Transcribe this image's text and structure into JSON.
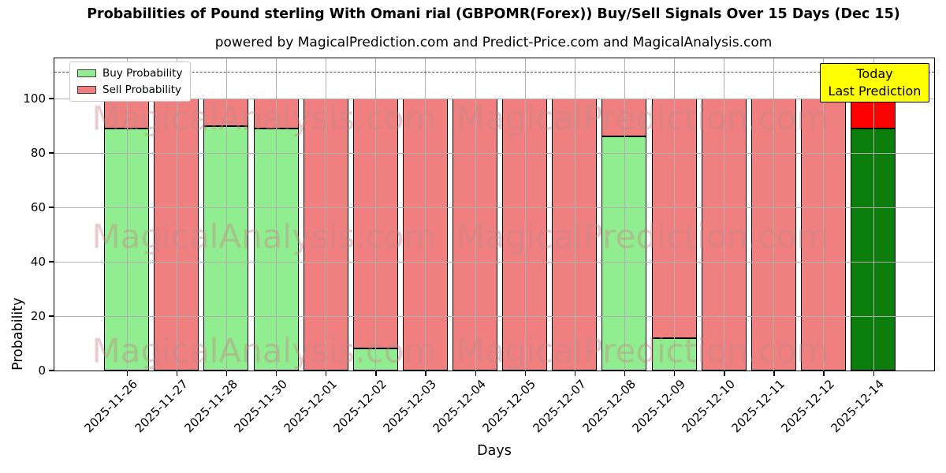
{
  "header": {
    "title": "Probabilities of Pound sterling With Omani rial (GBPOMR(Forex)) Buy/Sell Signals Over 15 Days (Dec 15)",
    "subtitle": "powered by MagicalPrediction.com and Predict-Price.com and MagicalAnalysis.com"
  },
  "legend": {
    "items": [
      {
        "label": "Buy Probability",
        "color": "#90ee90"
      },
      {
        "label": "Sell Probability",
        "color": "#f08080"
      }
    ]
  },
  "axes": {
    "xlabel": "Days",
    "ylabel": "Probability",
    "yticks": [
      0,
      20,
      40,
      60,
      80,
      100
    ]
  },
  "annotation": {
    "lines": [
      "Today",
      "Last Prediction"
    ],
    "bg_color": "#ffff00"
  },
  "watermarks": {
    "left": "MagicalAnalysis.com",
    "right": "MagicalPrediction.com"
  },
  "chart_data": {
    "type": "bar",
    "stacked": true,
    "title": "Probabilities of Pound sterling With Omani rial (GBPOMR(Forex)) Buy/Sell Signals Over 15 Days (Dec 15)",
    "xlabel": "Days",
    "ylabel": "Probability",
    "ylim": [
      0,
      115
    ],
    "grid": true,
    "legend_position": "upper left",
    "dashed_guide_line_y": 110,
    "categories": [
      "2025-11-26",
      "2025-11-27",
      "2025-11-28",
      "2025-11-30",
      "2025-12-01",
      "2025-12-02",
      "2025-12-03",
      "2025-12-04",
      "2025-12-05",
      "2025-12-07",
      "2025-12-08",
      "2025-12-09",
      "2025-12-10",
      "2025-12-11",
      "2025-12-12",
      "2025-12-14"
    ],
    "series": [
      {
        "name": "Buy Probability",
        "color": "#90ee90",
        "values": [
          89,
          0,
          90,
          89,
          0,
          8,
          0,
          0,
          0,
          0,
          86,
          12,
          0,
          0,
          0,
          89
        ]
      },
      {
        "name": "Sell Probability",
        "color": "#f08080",
        "values": [
          11,
          100,
          10,
          11,
          100,
          92,
          100,
          100,
          100,
          100,
          14,
          88,
          100,
          100,
          100,
          11
        ]
      }
    ],
    "today_last_bar": {
      "category": "2025-12-14",
      "buy_value": 89,
      "sell_value": 11,
      "buy_color": "#0a7d0a",
      "sell_color": "#ff0000"
    }
  }
}
